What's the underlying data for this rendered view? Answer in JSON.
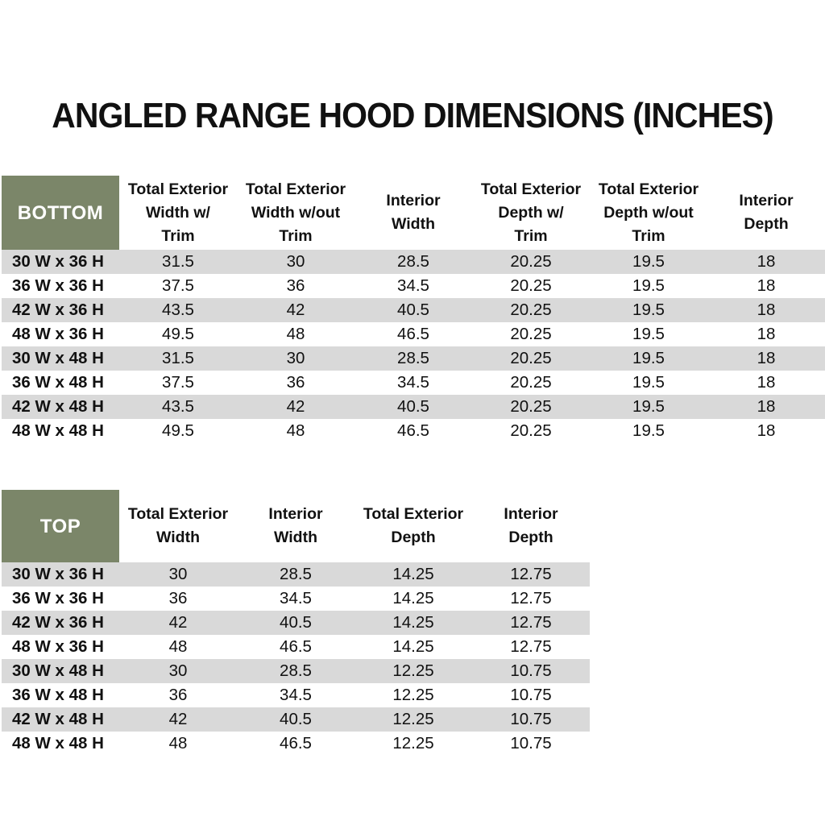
{
  "title": "ANGLED RANGE HOOD DIMENSIONS (INCHES)",
  "colors": {
    "header_green": "#7b8669",
    "stripe_gray": "#d9d9d9",
    "text": "#111111",
    "corner_text": "#ffffff",
    "background": "#ffffff"
  },
  "tables": {
    "bottom": {
      "corner_label": "BOTTOM",
      "columns": [
        [
          "Total Exterior",
          "Width w/",
          "Trim"
        ],
        [
          "Total Exterior",
          "Width w/out",
          "Trim"
        ],
        [
          "Interior",
          "Width"
        ],
        [
          "Total Exterior",
          "Depth w/",
          "Trim"
        ],
        [
          "Total Exterior",
          "Depth w/out",
          "Trim"
        ],
        [
          "Interior",
          "Depth"
        ]
      ],
      "rows": [
        {
          "label": "30 W x 36 H",
          "values": [
            "31.5",
            "30",
            "28.5",
            "20.25",
            "19.5",
            "18"
          ]
        },
        {
          "label": "36 W x 36 H",
          "values": [
            "37.5",
            "36",
            "34.5",
            "20.25",
            "19.5",
            "18"
          ]
        },
        {
          "label": "42 W x 36 H",
          "values": [
            "43.5",
            "42",
            "40.5",
            "20.25",
            "19.5",
            "18"
          ]
        },
        {
          "label": "48 W x 36 H",
          "values": [
            "49.5",
            "48",
            "46.5",
            "20.25",
            "19.5",
            "18"
          ]
        },
        {
          "label": "30 W x 48 H",
          "values": [
            "31.5",
            "30",
            "28.5",
            "20.25",
            "19.5",
            "18"
          ]
        },
        {
          "label": "36 W x 48 H",
          "values": [
            "37.5",
            "36",
            "34.5",
            "20.25",
            "19.5",
            "18"
          ]
        },
        {
          "label": "42 W x 48 H",
          "values": [
            "43.5",
            "42",
            "40.5",
            "20.25",
            "19.5",
            "18"
          ]
        },
        {
          "label": "48 W x 48 H",
          "values": [
            "49.5",
            "48",
            "46.5",
            "20.25",
            "19.5",
            "18"
          ]
        }
      ]
    },
    "top": {
      "corner_label": "TOP",
      "columns": [
        [
          "Total Exterior",
          "Width"
        ],
        [
          "Interior",
          "Width"
        ],
        [
          "Total Exterior",
          "Depth"
        ],
        [
          "Interior",
          "Depth"
        ]
      ],
      "rows": [
        {
          "label": "30 W x 36 H",
          "values": [
            "30",
            "28.5",
            "14.25",
            "12.75"
          ]
        },
        {
          "label": "36 W x 36 H",
          "values": [
            "36",
            "34.5",
            "14.25",
            "12.75"
          ]
        },
        {
          "label": "42 W x 36 H",
          "values": [
            "42",
            "40.5",
            "14.25",
            "12.75"
          ]
        },
        {
          "label": "48 W x 36 H",
          "values": [
            "48",
            "46.5",
            "14.25",
            "12.75"
          ]
        },
        {
          "label": "30 W x 48 H",
          "values": [
            "30",
            "28.5",
            "12.25",
            "10.75"
          ]
        },
        {
          "label": "36 W x 48 H",
          "values": [
            "36",
            "34.5",
            "12.25",
            "10.75"
          ]
        },
        {
          "label": "42 W x 48 H",
          "values": [
            "42",
            "40.5",
            "12.25",
            "10.75"
          ]
        },
        {
          "label": "48 W x 48 H",
          "values": [
            "48",
            "46.5",
            "12.25",
            "10.75"
          ]
        }
      ]
    }
  }
}
